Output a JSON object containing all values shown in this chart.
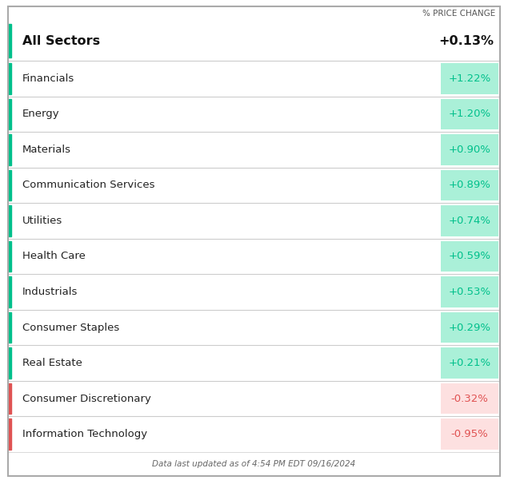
{
  "header_label": "% PRICE CHANGE",
  "all_sectors_label": "All Sectors",
  "all_sectors_value": "+0.13%",
  "sectors": [
    {
      "name": "Financials",
      "value": "+1.22%",
      "change": 1.22
    },
    {
      "name": "Energy",
      "value": "+1.20%",
      "change": 1.2
    },
    {
      "name": "Materials",
      "value": "+0.90%",
      "change": 0.9
    },
    {
      "name": "Communication Services",
      "value": "+0.89%",
      "change": 0.89
    },
    {
      "name": "Utilities",
      "value": "+0.74%",
      "change": 0.74
    },
    {
      "name": "Health Care",
      "value": "+0.59%",
      "change": 0.59
    },
    {
      "name": "Industrials",
      "value": "+0.53%",
      "change": 0.53
    },
    {
      "name": "Consumer Staples",
      "value": "+0.29%",
      "change": 0.29
    },
    {
      "name": "Real Estate",
      "value": "+0.21%",
      "change": 0.21
    },
    {
      "name": "Consumer Discretionary",
      "value": "-0.32%",
      "change": -0.32
    },
    {
      "name": "Information Technology",
      "value": "-0.95%",
      "change": -0.95
    }
  ],
  "positive_bar_color": "#00c08b",
  "positive_bg_color": "#aaf0d8",
  "negative_bar_color": "#e05252",
  "negative_bg_color": "#fde0e0",
  "footer_text": "Data last updated as of 4:54 PM EDT 09/16/2024",
  "outer_border_color": "#aaaaaa",
  "row_divider_color": "#cccccc",
  "background_color": "#ffffff",
  "sector_name_fontsize": 9.5,
  "value_fontsize": 9.5,
  "header_fontsize": 7.5,
  "all_sectors_fontsize": 11.5,
  "all_sectors_value_fontsize": 11.5,
  "footer_fontsize": 7.5
}
